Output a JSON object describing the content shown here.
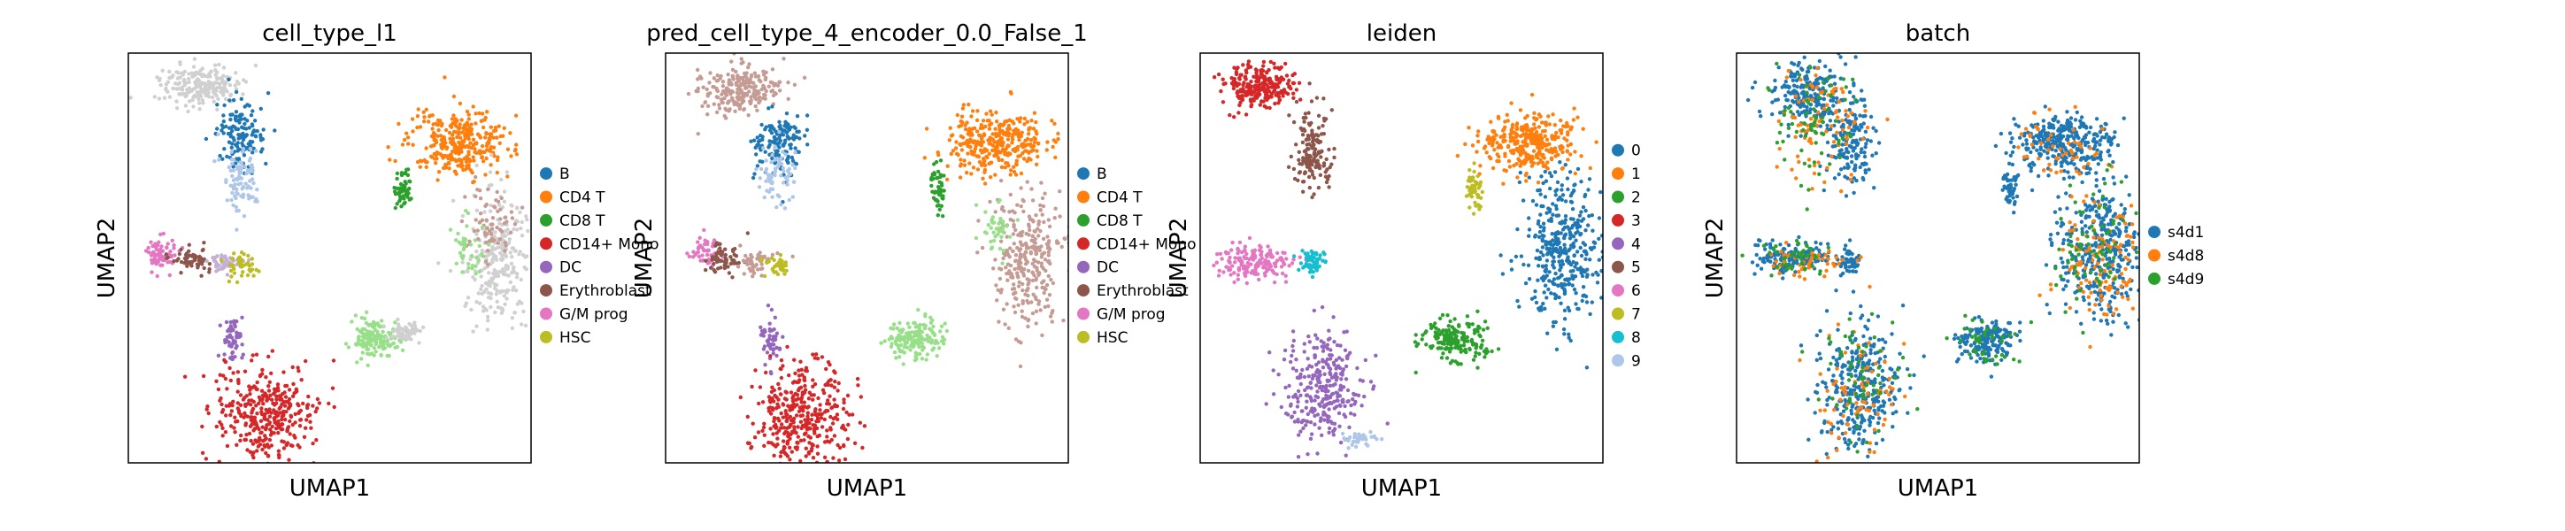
{
  "figure": {
    "panel_count": 4
  },
  "chart_data": [
    {
      "type": "scatter",
      "title": "cell_type_l1",
      "xlabel": "UMAP1",
      "ylabel": "UMAP2",
      "grid": false,
      "legend_placement": "right",
      "legend": [
        {
          "label": "B",
          "color": "#1f77b4"
        },
        {
          "label": "CD4 T",
          "color": "#ff7f0e"
        },
        {
          "label": "CD8 T",
          "color": "#2ca02c"
        },
        {
          "label": "CD14+ Mono",
          "color": "#d62728"
        },
        {
          "label": "DC",
          "color": "#9467bd"
        },
        {
          "label": "Erythroblast",
          "color": "#8c564b"
        },
        {
          "label": "G/M prog",
          "color": "#e377c2"
        },
        {
          "label": "HSC",
          "color": "#bcbd22"
        }
      ],
      "clusters": [
        {
          "color": "#d0d0d0",
          "x": 0.18,
          "y": 0.08,
          "n": 220,
          "sx": 0.05,
          "sy": 0.025
        },
        {
          "color": "#1f77b4",
          "x": 0.28,
          "y": 0.2,
          "n": 140,
          "sx": 0.03,
          "sy": 0.04
        },
        {
          "color": "#aec7e8",
          "x": 0.28,
          "y": 0.3,
          "n": 90,
          "sx": 0.025,
          "sy": 0.04
        },
        {
          "color": "#ff7f0e",
          "x": 0.82,
          "y": 0.22,
          "n": 320,
          "sx": 0.06,
          "sy": 0.04
        },
        {
          "color": "#2ca02c",
          "x": 0.68,
          "y": 0.33,
          "n": 50,
          "sx": 0.01,
          "sy": 0.025
        },
        {
          "color": "#d0d0d0",
          "x": 0.92,
          "y": 0.5,
          "n": 260,
          "sx": 0.04,
          "sy": 0.08
        },
        {
          "color": "#c49c94",
          "x": 0.9,
          "y": 0.42,
          "n": 70,
          "sx": 0.03,
          "sy": 0.04
        },
        {
          "color": "#98df8a",
          "x": 0.84,
          "y": 0.48,
          "n": 40,
          "sx": 0.02,
          "sy": 0.04
        },
        {
          "color": "#e377c2",
          "x": 0.08,
          "y": 0.49,
          "n": 70,
          "sx": 0.02,
          "sy": 0.02
        },
        {
          "color": "#8c564b",
          "x": 0.16,
          "y": 0.5,
          "n": 60,
          "sx": 0.025,
          "sy": 0.015
        },
        {
          "color": "#c5b0d5",
          "x": 0.24,
          "y": 0.51,
          "n": 50,
          "sx": 0.02,
          "sy": 0.012
        },
        {
          "color": "#bcbd22",
          "x": 0.28,
          "y": 0.52,
          "n": 40,
          "sx": 0.02,
          "sy": 0.015
        },
        {
          "color": "#9467bd",
          "x": 0.26,
          "y": 0.7,
          "n": 60,
          "sx": 0.012,
          "sy": 0.03
        },
        {
          "color": "#d62728",
          "x": 0.34,
          "y": 0.88,
          "n": 360,
          "sx": 0.06,
          "sy": 0.06
        },
        {
          "color": "#98df8a",
          "x": 0.61,
          "y": 0.7,
          "n": 140,
          "sx": 0.03,
          "sy": 0.025
        },
        {
          "color": "#d0d0d0",
          "x": 0.69,
          "y": 0.68,
          "n": 50,
          "sx": 0.02,
          "sy": 0.01
        }
      ]
    },
    {
      "type": "scatter",
      "title": "pred_cell_type_4_encoder_0.0_False_1",
      "xlabel": "UMAP1",
      "ylabel": "UMAP2",
      "grid": false,
      "legend_placement": "right",
      "legend": [
        {
          "label": "B",
          "color": "#1f77b4"
        },
        {
          "label": "CD4 T",
          "color": "#ff7f0e"
        },
        {
          "label": "CD8 T",
          "color": "#2ca02c"
        },
        {
          "label": "CD14+ Mono",
          "color": "#d62728"
        },
        {
          "label": "DC",
          "color": "#9467bd"
        },
        {
          "label": "Erythroblast",
          "color": "#8c564b"
        },
        {
          "label": "G/M prog",
          "color": "#e377c2"
        },
        {
          "label": "HSC",
          "color": "#bcbd22"
        }
      ],
      "clusters": [
        {
          "color": "#c49c94",
          "x": 0.18,
          "y": 0.09,
          "n": 230,
          "sx": 0.05,
          "sy": 0.03
        },
        {
          "color": "#1f77b4",
          "x": 0.28,
          "y": 0.22,
          "n": 140,
          "sx": 0.03,
          "sy": 0.04
        },
        {
          "color": "#aec7e8",
          "x": 0.28,
          "y": 0.3,
          "n": 70,
          "sx": 0.025,
          "sy": 0.035
        },
        {
          "color": "#ff7f0e",
          "x": 0.82,
          "y": 0.22,
          "n": 320,
          "sx": 0.06,
          "sy": 0.04
        },
        {
          "color": "#2ca02c",
          "x": 0.68,
          "y": 0.33,
          "n": 50,
          "sx": 0.01,
          "sy": 0.025
        },
        {
          "color": "#c49c94",
          "x": 0.9,
          "y": 0.5,
          "n": 300,
          "sx": 0.045,
          "sy": 0.08
        },
        {
          "color": "#98df8a",
          "x": 0.82,
          "y": 0.43,
          "n": 40,
          "sx": 0.02,
          "sy": 0.03
        },
        {
          "color": "#e377c2",
          "x": 0.1,
          "y": 0.48,
          "n": 50,
          "sx": 0.02,
          "sy": 0.02
        },
        {
          "color": "#8c564b",
          "x": 0.14,
          "y": 0.5,
          "n": 60,
          "sx": 0.025,
          "sy": 0.02
        },
        {
          "color": "#c49c94",
          "x": 0.23,
          "y": 0.51,
          "n": 50,
          "sx": 0.02,
          "sy": 0.015
        },
        {
          "color": "#bcbd22",
          "x": 0.28,
          "y": 0.52,
          "n": 40,
          "sx": 0.015,
          "sy": 0.015
        },
        {
          "color": "#9467bd",
          "x": 0.26,
          "y": 0.7,
          "n": 50,
          "sx": 0.012,
          "sy": 0.03
        },
        {
          "color": "#d62728",
          "x": 0.34,
          "y": 0.88,
          "n": 360,
          "sx": 0.06,
          "sy": 0.06
        },
        {
          "color": "#98df8a",
          "x": 0.62,
          "y": 0.7,
          "n": 160,
          "sx": 0.035,
          "sy": 0.025
        }
      ]
    },
    {
      "type": "scatter",
      "title": "leiden",
      "xlabel": "UMAP1",
      "ylabel": "UMAP2",
      "grid": false,
      "legend_placement": "right",
      "legend": [
        {
          "label": "0",
          "color": "#1f77b4"
        },
        {
          "label": "1",
          "color": "#ff7f0e"
        },
        {
          "label": "2",
          "color": "#2ca02c"
        },
        {
          "label": "3",
          "color": "#d62728"
        },
        {
          "label": "4",
          "color": "#9467bd"
        },
        {
          "label": "5",
          "color": "#8c564b"
        },
        {
          "label": "6",
          "color": "#e377c2"
        },
        {
          "label": "7",
          "color": "#bcbd22"
        },
        {
          "label": "8",
          "color": "#17becf"
        },
        {
          "label": "9",
          "color": "#aec7e8"
        }
      ],
      "clusters": [
        {
          "color": "#d62728",
          "x": 0.14,
          "y": 0.08,
          "n": 250,
          "sx": 0.045,
          "sy": 0.025
        },
        {
          "color": "#8c564b",
          "x": 0.28,
          "y": 0.24,
          "n": 150,
          "sx": 0.025,
          "sy": 0.05
        },
        {
          "color": "#ff7f0e",
          "x": 0.82,
          "y": 0.22,
          "n": 320,
          "sx": 0.06,
          "sy": 0.035
        },
        {
          "color": "#bcbd22",
          "x": 0.68,
          "y": 0.33,
          "n": 50,
          "sx": 0.01,
          "sy": 0.025
        },
        {
          "color": "#1f77b4",
          "x": 0.9,
          "y": 0.47,
          "n": 380,
          "sx": 0.05,
          "sy": 0.09
        },
        {
          "color": "#e377c2",
          "x": 0.14,
          "y": 0.51,
          "n": 170,
          "sx": 0.05,
          "sy": 0.02
        },
        {
          "color": "#17becf",
          "x": 0.28,
          "y": 0.51,
          "n": 60,
          "sx": 0.015,
          "sy": 0.015
        },
        {
          "color": "#9467bd",
          "x": 0.3,
          "y": 0.82,
          "n": 300,
          "sx": 0.05,
          "sy": 0.07
        },
        {
          "color": "#aec7e8",
          "x": 0.4,
          "y": 0.94,
          "n": 40,
          "sx": 0.02,
          "sy": 0.008
        },
        {
          "color": "#2ca02c",
          "x": 0.63,
          "y": 0.7,
          "n": 180,
          "sx": 0.04,
          "sy": 0.025
        }
      ]
    },
    {
      "type": "scatter",
      "title": "batch",
      "xlabel": "UMAP1",
      "ylabel": "UMAP2",
      "grid": false,
      "legend_placement": "right",
      "legend": [
        {
          "label": "s4d1",
          "color": "#1f77b4"
        },
        {
          "label": "s4d8",
          "color": "#ff7f0e"
        },
        {
          "label": "s4d9",
          "color": "#2ca02c"
        }
      ],
      "clusters": [
        {
          "color": "#1f77b4",
          "x": 0.18,
          "y": 0.1,
          "n": 230,
          "sx": 0.05,
          "sy": 0.04
        },
        {
          "color": "#1f77b4",
          "x": 0.28,
          "y": 0.22,
          "n": 140,
          "sx": 0.03,
          "sy": 0.05
        },
        {
          "color": "#1f77b4",
          "x": 0.82,
          "y": 0.22,
          "n": 320,
          "sx": 0.06,
          "sy": 0.035
        },
        {
          "color": "#1f77b4",
          "x": 0.68,
          "y": 0.33,
          "n": 50,
          "sx": 0.01,
          "sy": 0.025
        },
        {
          "color": "#1f77b4",
          "x": 0.9,
          "y": 0.47,
          "n": 360,
          "sx": 0.05,
          "sy": 0.09
        },
        {
          "color": "#1f77b4",
          "x": 0.14,
          "y": 0.5,
          "n": 170,
          "sx": 0.05,
          "sy": 0.02
        },
        {
          "color": "#1f77b4",
          "x": 0.28,
          "y": 0.51,
          "n": 50,
          "sx": 0.015,
          "sy": 0.015
        },
        {
          "color": "#1f77b4",
          "x": 0.3,
          "y": 0.82,
          "n": 320,
          "sx": 0.05,
          "sy": 0.08
        },
        {
          "color": "#1f77b4",
          "x": 0.62,
          "y": 0.7,
          "n": 170,
          "sx": 0.035,
          "sy": 0.025
        },
        {
          "color": "#ff7f0e",
          "x": 0.22,
          "y": 0.18,
          "n": 90,
          "sx": 0.06,
          "sy": 0.07
        },
        {
          "color": "#ff7f0e",
          "x": 0.9,
          "y": 0.52,
          "n": 120,
          "sx": 0.05,
          "sy": 0.08
        },
        {
          "color": "#ff7f0e",
          "x": 0.18,
          "y": 0.51,
          "n": 50,
          "sx": 0.05,
          "sy": 0.02
        },
        {
          "color": "#ff7f0e",
          "x": 0.3,
          "y": 0.82,
          "n": 80,
          "sx": 0.05,
          "sy": 0.08
        },
        {
          "color": "#ff7f0e",
          "x": 0.82,
          "y": 0.24,
          "n": 50,
          "sx": 0.06,
          "sy": 0.04
        },
        {
          "color": "#2ca02c",
          "x": 0.2,
          "y": 0.15,
          "n": 70,
          "sx": 0.06,
          "sy": 0.07
        },
        {
          "color": "#2ca02c",
          "x": 0.88,
          "y": 0.45,
          "n": 70,
          "sx": 0.05,
          "sy": 0.09
        },
        {
          "color": "#2ca02c",
          "x": 0.14,
          "y": 0.5,
          "n": 40,
          "sx": 0.05,
          "sy": 0.02
        },
        {
          "color": "#2ca02c",
          "x": 0.3,
          "y": 0.82,
          "n": 60,
          "sx": 0.05,
          "sy": 0.08
        },
        {
          "color": "#2ca02c",
          "x": 0.62,
          "y": 0.7,
          "n": 40,
          "sx": 0.035,
          "sy": 0.025
        }
      ]
    }
  ]
}
